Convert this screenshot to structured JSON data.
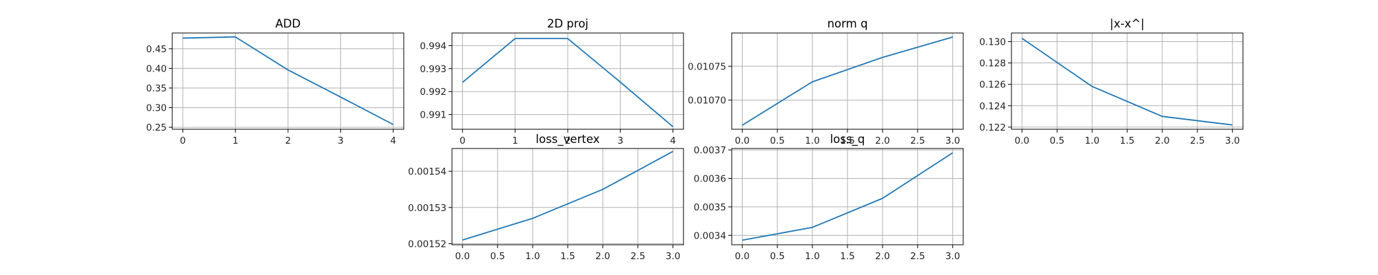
{
  "chart_data": [
    {
      "type": "line",
      "title": "ADD",
      "x": [
        0,
        1,
        2,
        3,
        4
      ],
      "series": [
        {
          "values": [
            0.477,
            0.48,
            0.396,
            0.327,
            0.257
          ]
        }
      ],
      "xlim": [
        -0.2,
        4.2
      ],
      "ylim": [
        0.245,
        0.49
      ],
      "xticks": [
        0,
        1,
        2,
        3,
        4
      ],
      "xtick_labels": [
        "0",
        "1",
        "2",
        "3",
        "4"
      ],
      "yticks": [
        0.25,
        0.3,
        0.35,
        0.4,
        0.45
      ],
      "ytick_labels": [
        "0.25",
        "0.30",
        "0.35",
        "0.40",
        "0.45"
      ],
      "grid": true
    },
    {
      "type": "line",
      "title": "2D proj",
      "x": [
        0,
        1,
        2,
        3,
        4
      ],
      "series": [
        {
          "values": [
            0.9924,
            0.99431,
            0.99431,
            0.99241,
            0.99047
          ]
        }
      ],
      "xlim": [
        -0.2,
        4.2
      ],
      "ylim": [
        0.99036,
        0.99455
      ],
      "xticks": [
        0,
        1,
        2,
        3,
        4
      ],
      "xtick_labels": [
        "0",
        "1",
        "2",
        "3",
        "4"
      ],
      "yticks": [
        0.991,
        0.992,
        0.993,
        0.994
      ],
      "ytick_labels": [
        "0.991",
        "0.992",
        "0.993",
        "0.994"
      ],
      "grid": true
    },
    {
      "type": "line",
      "title": "norm q",
      "x": [
        0,
        1,
        2,
        3
      ],
      "series": [
        {
          "values": [
            0.010663,
            0.010727,
            0.010763,
            0.010793
          ]
        }
      ],
      "xlim": [
        -0.15,
        3.15
      ],
      "ylim": [
        0.010657,
        0.010799
      ],
      "xticks": [
        0.0,
        0.5,
        1.0,
        1.5,
        2.0,
        2.5,
        3.0
      ],
      "xtick_labels": [
        "0.0",
        "0.5",
        "1.0",
        "1.5",
        "2.0",
        "2.5",
        "3.0"
      ],
      "yticks": [
        0.0107,
        0.01075
      ],
      "ytick_labels": [
        "0.01070",
        "0.01075"
      ],
      "grid": true
    },
    {
      "type": "line",
      "title": "|x-x^|",
      "x": [
        0,
        1,
        2,
        3
      ],
      "series": [
        {
          "values": [
            0.1303,
            0.1258,
            0.123,
            0.1222
          ]
        }
      ],
      "xlim": [
        -0.15,
        3.15
      ],
      "ylim": [
        0.1218,
        0.1308
      ],
      "xticks": [
        0.0,
        0.5,
        1.0,
        1.5,
        2.0,
        2.5,
        3.0
      ],
      "xtick_labels": [
        "0.0",
        "0.5",
        "1.0",
        "1.5",
        "2.0",
        "2.5",
        "3.0"
      ],
      "yticks": [
        0.122,
        0.124,
        0.126,
        0.128,
        0.13
      ],
      "ytick_labels": [
        "0.122",
        "0.124",
        "0.126",
        "0.128",
        "0.130"
      ],
      "grid": true
    },
    {
      "type": "line",
      "title": "loss_vertex",
      "x": [
        0,
        1,
        2,
        3
      ],
      "series": [
        {
          "values": [
            0.001521,
            0.001527,
            0.001535,
            0.0015455
          ]
        }
      ],
      "xlim": [
        -0.15,
        3.15
      ],
      "ylim": [
        0.0015197,
        0.0015463
      ],
      "xticks": [
        0.0,
        0.5,
        1.0,
        1.5,
        2.0,
        2.5,
        3.0
      ],
      "xtick_labels": [
        "0.0",
        "0.5",
        "1.0",
        "1.5",
        "2.0",
        "2.5",
        "3.0"
      ],
      "yticks": [
        0.00152,
        0.00153,
        0.00154
      ],
      "ytick_labels": [
        "0.00152",
        "0.00153",
        "0.00154"
      ],
      "grid": true
    },
    {
      "type": "line",
      "title": "loss_q",
      "x": [
        0,
        1,
        2,
        3
      ],
      "series": [
        {
          "values": [
            0.003383,
            0.003428,
            0.00353,
            0.00369
          ]
        }
      ],
      "xlim": [
        -0.15,
        3.15
      ],
      "ylim": [
        0.003367,
        0.003705
      ],
      "xticks": [
        0.0,
        0.5,
        1.0,
        1.5,
        2.0,
        2.5,
        3.0
      ],
      "xtick_labels": [
        "0.0",
        "0.5",
        "1.0",
        "1.5",
        "2.0",
        "2.5",
        "3.0"
      ],
      "yticks": [
        0.0034,
        0.0035,
        0.0036,
        0.0037
      ],
      "ytick_labels": [
        "0.0034",
        "0.0035",
        "0.0036",
        "0.0037"
      ],
      "grid": true
    }
  ],
  "colors": {
    "series": "#1f77b4",
    "grid": "#b0b0b0",
    "frame": "#000000"
  }
}
